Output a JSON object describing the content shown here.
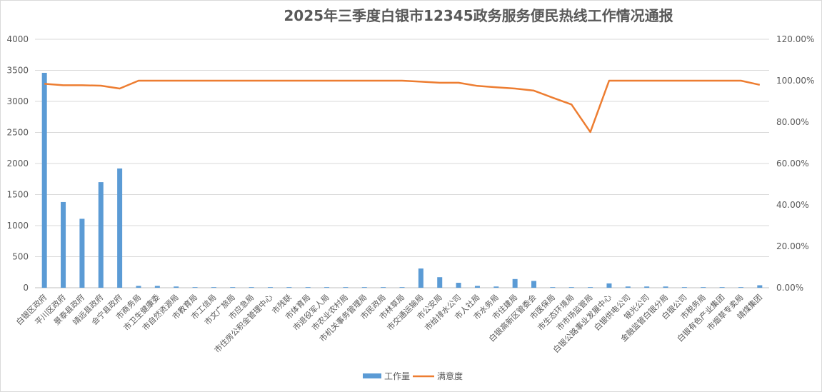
{
  "chart_data": {
    "type": "bar",
    "title": "2025年三季度白银市12345政务服务便民热线工作情况通报",
    "xlabel": "",
    "ylabel": "",
    "ylim": [
      0,
      4000
    ],
    "y2lim": [
      0,
      1.2
    ],
    "yticks": [
      "0",
      "500",
      "1000",
      "1500",
      "2000",
      "2500",
      "3000",
      "3500",
      "4000"
    ],
    "y2ticks": [
      "0.00%",
      "20.00%",
      "40.00%",
      "60.00%",
      "80.00%",
      "100.00%",
      "120.00%"
    ],
    "grid": true,
    "legend_position": "bottom",
    "categories": [
      "白银区政府",
      "平川区政府",
      "景泰县政府",
      "靖远县政府",
      "会宁县政府",
      "市商务局",
      "市卫生健康委",
      "市自然资源局",
      "市教育局",
      "市工信局",
      "市文广旅局",
      "市应急局",
      "市住房公积金管理中心",
      "市残联",
      "市体育局",
      "市退役军人局",
      "市农业农村局",
      "市机关事务管理局",
      "市民政局",
      "市林草局",
      "市交通运输局",
      "市公安局",
      "市给排水公司",
      "市人社局",
      "市水务局",
      "市住建局",
      "白银高新区管委会",
      "市医保局",
      "市生态环境局",
      "市市场监管局",
      "白银公路事业发展中心",
      "白银供电公司",
      "银光公司",
      "金融监管白银分局",
      "白银公司",
      "市税务局",
      "白银有色产业集团",
      "市烟草专卖局",
      "靖煤集团"
    ],
    "series": [
      {
        "name": "工作量",
        "type": "bar",
        "axis": "left",
        "color": "#5b9bd5",
        "values": [
          3460,
          1380,
          1110,
          1700,
          1920,
          30,
          30,
          20,
          10,
          10,
          10,
          10,
          10,
          10,
          10,
          10,
          10,
          10,
          10,
          10,
          310,
          170,
          80,
          30,
          20,
          140,
          110,
          10,
          10,
          10,
          70,
          20,
          20,
          20,
          10,
          10,
          10,
          10,
          40
        ]
      },
      {
        "name": "满意度",
        "type": "line",
        "axis": "right",
        "color": "#ed7d31",
        "values": [
          0.985,
          0.978,
          0.978,
          0.976,
          0.962,
          1.0,
          1.0,
          1.0,
          1.0,
          1.0,
          1.0,
          1.0,
          1.0,
          1.0,
          1.0,
          1.0,
          1.0,
          1.0,
          1.0,
          1.0,
          0.995,
          0.99,
          0.99,
          0.975,
          0.968,
          0.962,
          0.952,
          0.918,
          0.885,
          0.752,
          1.0,
          1.0,
          1.0,
          1.0,
          1.0,
          1.0,
          1.0,
          1.0,
          0.98
        ]
      }
    ]
  }
}
